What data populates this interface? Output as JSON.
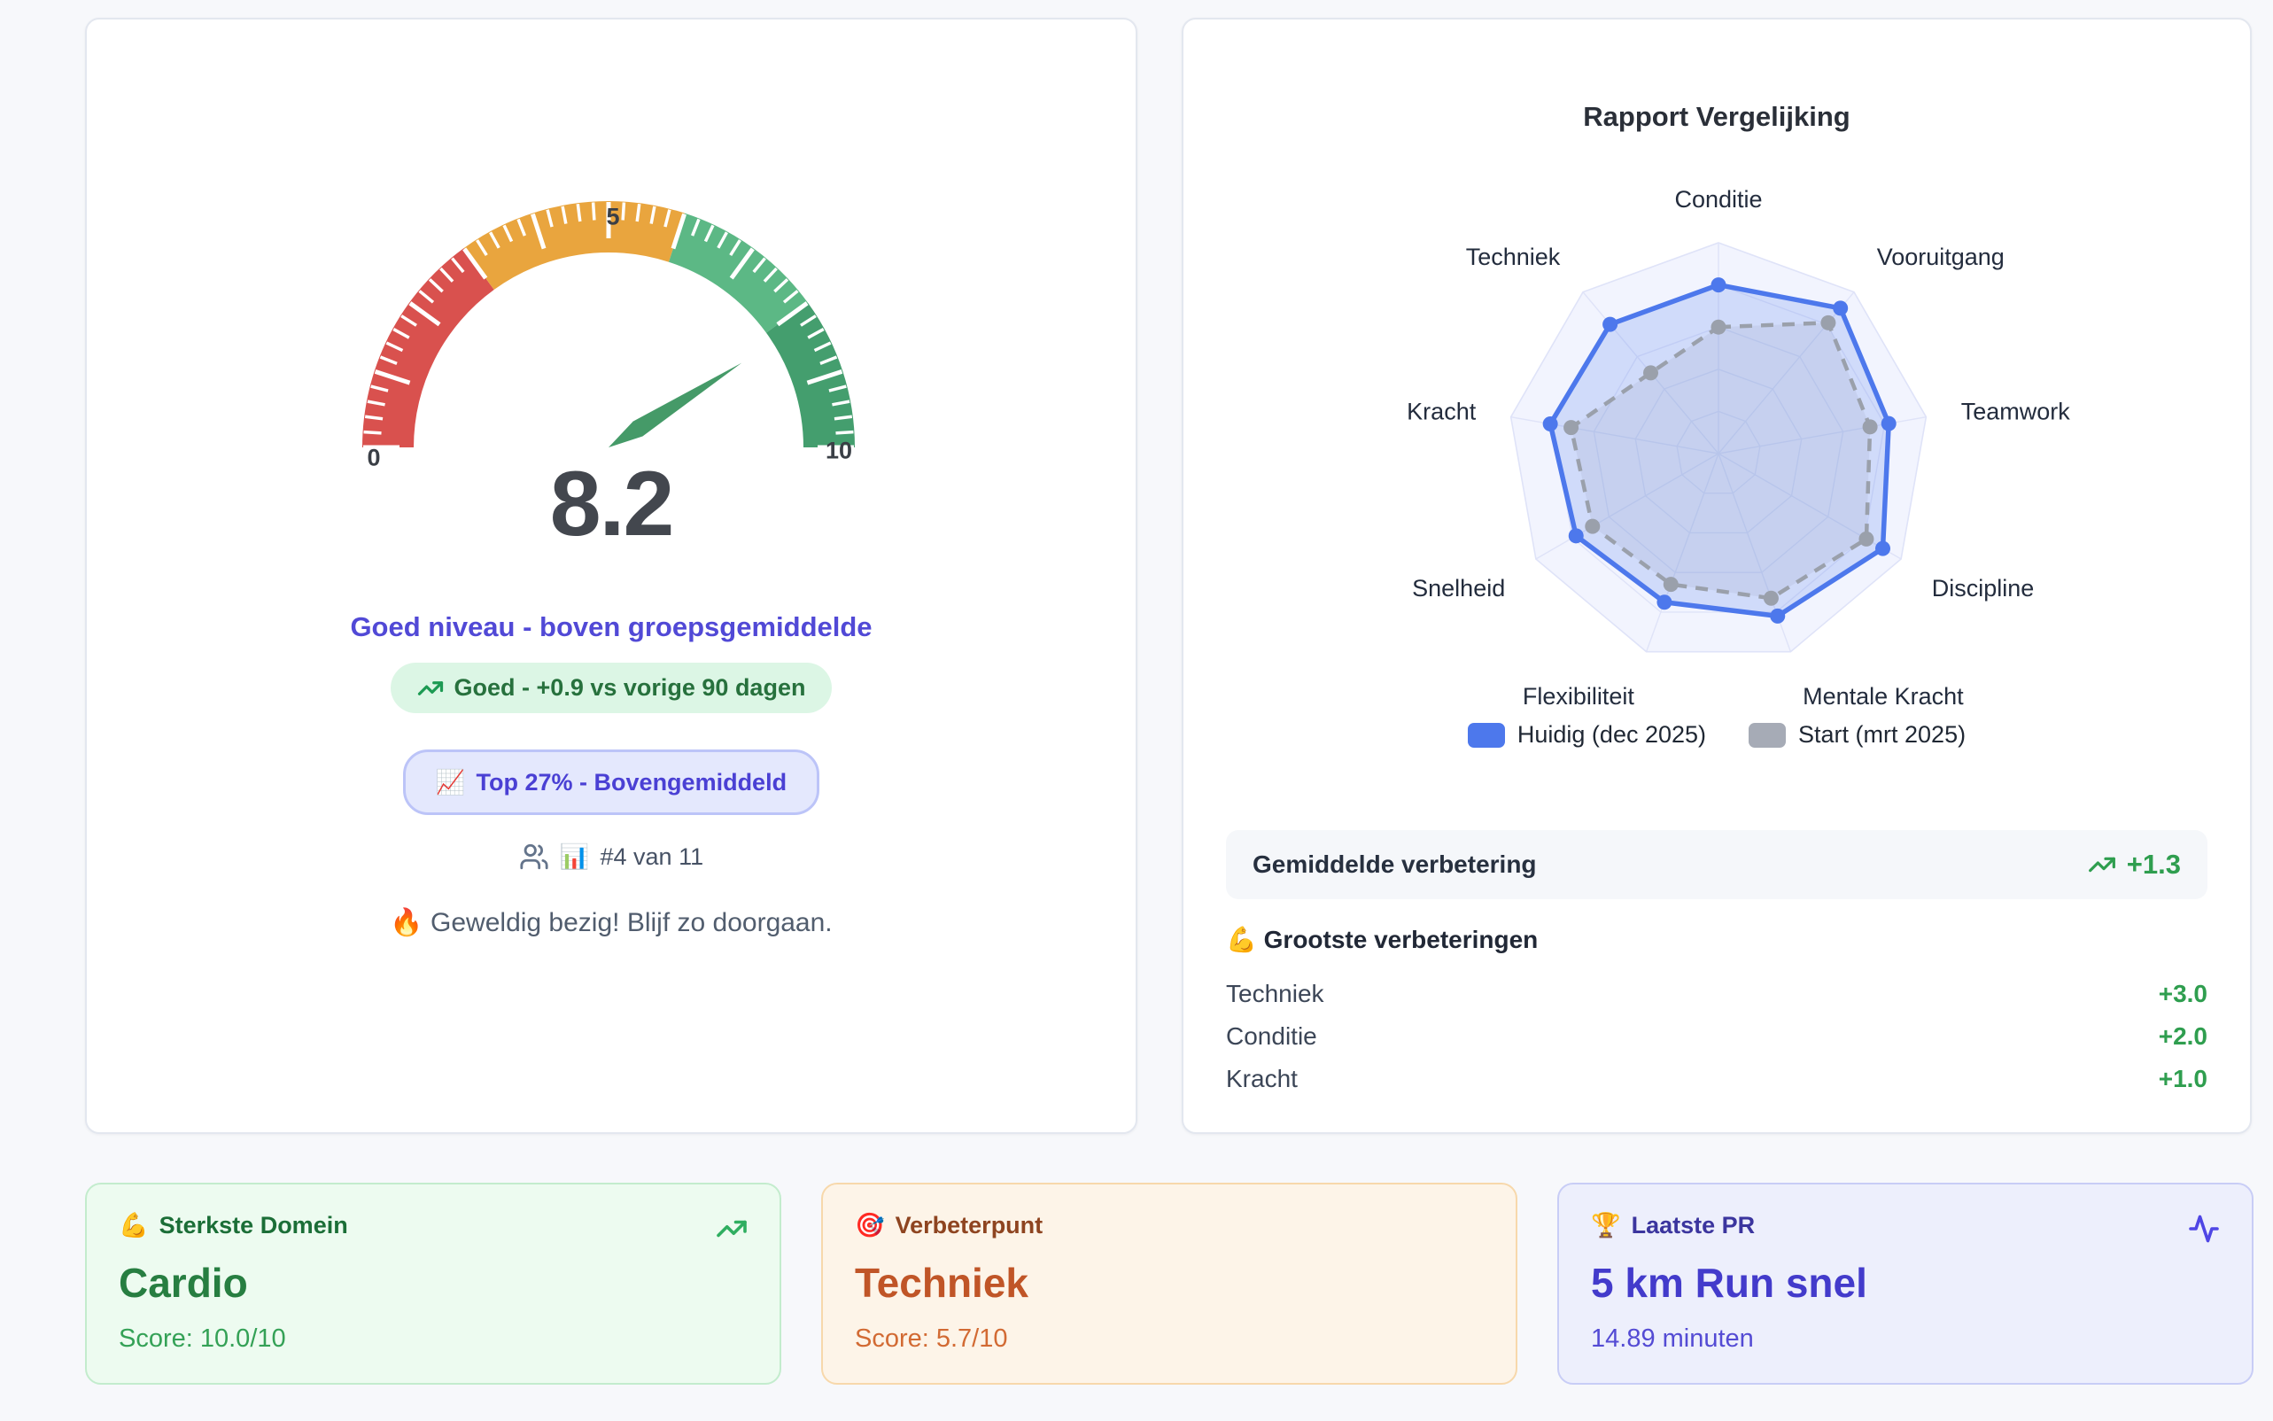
{
  "gauge_card": {
    "score": "8.2",
    "tick_min": "0",
    "tick_mid": "5",
    "tick_max": "10",
    "level_text": "Goed niveau - boven groepsgemiddelde",
    "trend_badge_label": "Goed - +0.9 vs vorige 90 dagen",
    "percentile_emoji": "📈",
    "percentile_label": "Top 27% - Bovengemiddeld",
    "rank_emoji": "📊",
    "rank_text": "#4 van 11",
    "motivation_text": "🔥 Geweldig bezig! Blijf zo doorgaan."
  },
  "comparison_card": {
    "title": "Rapport Vergelijking",
    "legend": [
      {
        "label": "Huidig (dec 2025)",
        "color": "#4d78ec"
      },
      {
        "label": "Start (mrt 2025)",
        "color": "#a6abb6"
      }
    ],
    "average_row": {
      "label": "Gemiddelde verbetering",
      "value": "+1.3"
    },
    "improvements_title": "💪 Grootste verbeteringen",
    "improvements": [
      {
        "label": "Techniek",
        "value": "+3.0"
      },
      {
        "label": "Conditie",
        "value": "+2.0"
      },
      {
        "label": "Kracht",
        "value": "+1.0"
      }
    ]
  },
  "summary_cards": [
    {
      "emoji": "💪",
      "header": "Sterkste Domein",
      "title": "Cardio",
      "subtitle": "Score: 10.0/10",
      "accent": "#2fae60"
    },
    {
      "emoji": "🎯",
      "header": "Verbeterpunt",
      "title": "Techniek",
      "subtitle": "Score: 5.7/10",
      "accent": "#c05527"
    },
    {
      "emoji": "🏆",
      "header": "Laatste PR",
      "title": "5 km Run snel",
      "subtitle": "14.89 minuten",
      "accent": "#4f46e5"
    }
  ],
  "chart_data": [
    {
      "type": "gauge",
      "value": 8.2,
      "min": 0,
      "max": 10,
      "tick_labels": [
        "0",
        "5",
        "10"
      ],
      "minor_tick_step": 0.2,
      "major_tick_step": 1,
      "segments": [
        {
          "from": 0,
          "to": 3,
          "color": "#d9514e"
        },
        {
          "from": 3,
          "to": 6,
          "color": "#e9a53e"
        },
        {
          "from": 6,
          "to": 8,
          "color": "#5cb885"
        },
        {
          "from": 8,
          "to": 10,
          "color": "#449e6e"
        }
      ],
      "needle_color": "#459a68",
      "value_color": "#43474e"
    },
    {
      "type": "radar",
      "title": "Rapport Vergelijking",
      "categories": [
        "Conditie",
        "Vooruitgang",
        "Teamwork",
        "Discipline",
        "Mentale Kracht",
        "Flexibiliteit",
        "Snelheid",
        "Kracht",
        "Techniek"
      ],
      "series": [
        {
          "name": "Huidig (dec 2025)",
          "color": "#4d78ec",
          "style": "solid",
          "fill_opacity": 0.2,
          "values": [
            8.0,
            9.0,
            8.2,
            9.0,
            8.2,
            7.5,
            7.8,
            8.1,
            8.0
          ]
        },
        {
          "name": "Start (mrt 2025)",
          "color": "#9aa0ab",
          "style": "dashed",
          "fill_opacity": 0.15,
          "values": [
            6.0,
            8.1,
            7.3,
            8.1,
            7.3,
            6.6,
            6.9,
            7.1,
            5.0
          ]
        }
      ],
      "rmin": 0,
      "rmax": 10,
      "rings": 5,
      "grid_color": "#dfe3f8",
      "outer_fill": "#f2f4fe",
      "label_color": "#232c3d",
      "legend_position": "bottom"
    }
  ]
}
